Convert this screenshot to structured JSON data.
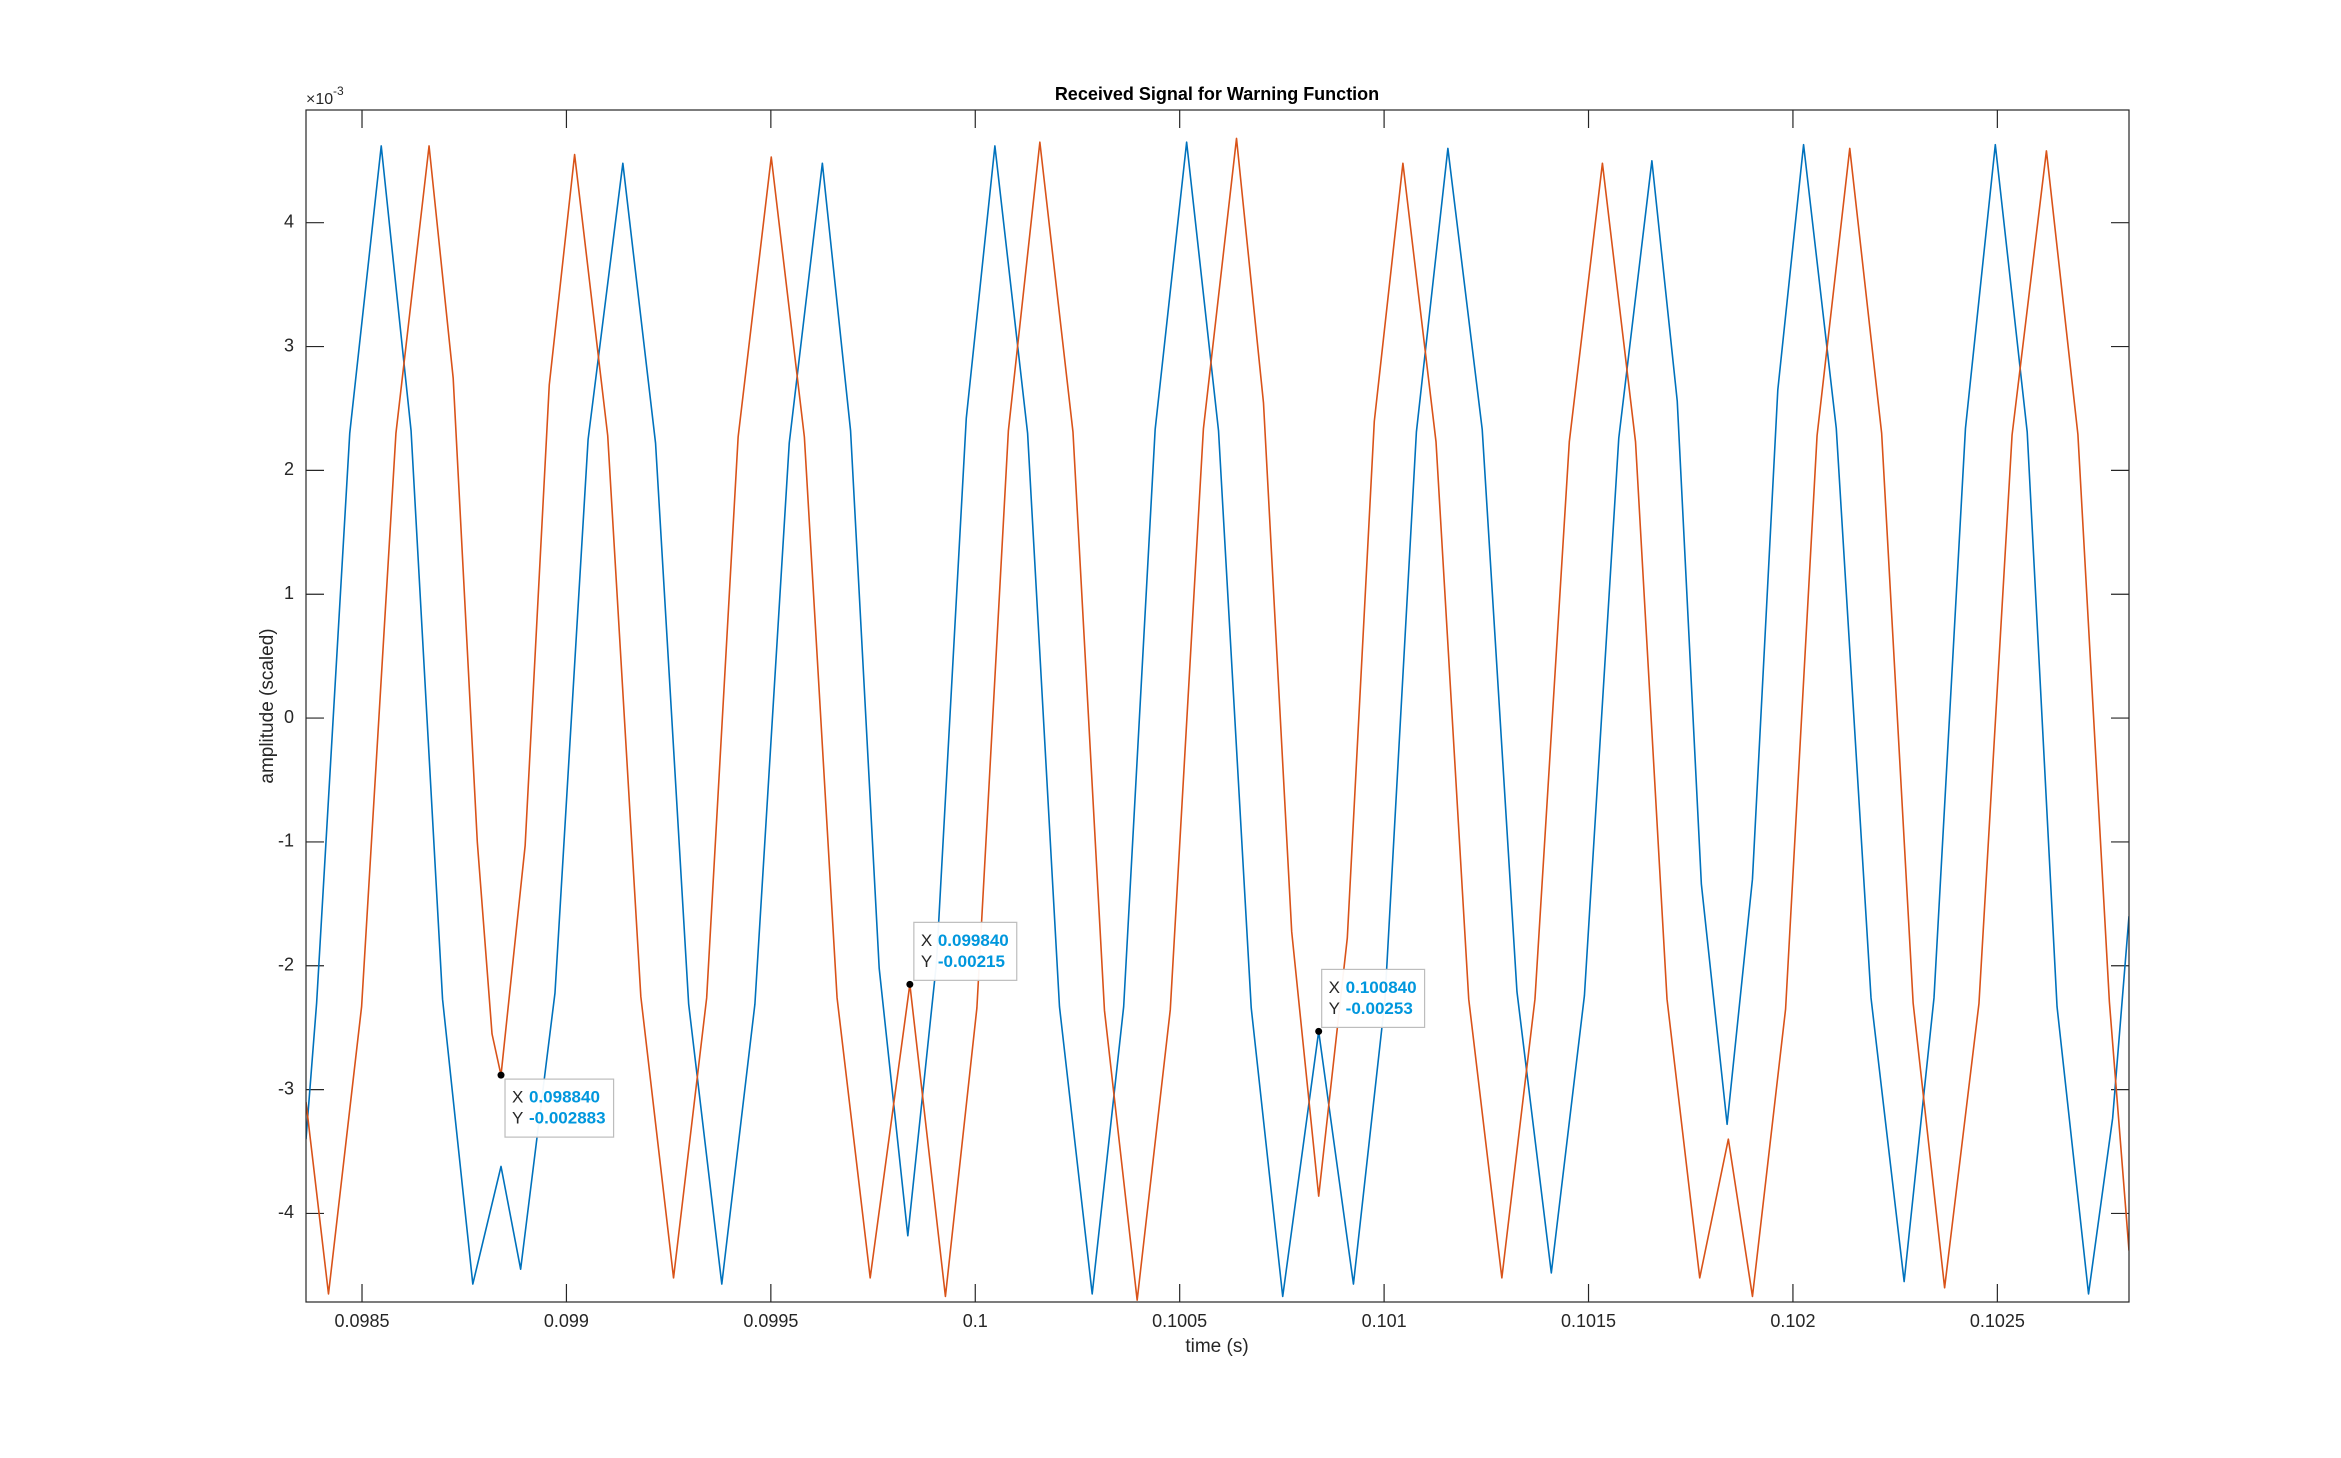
{
  "chart_data": {
    "type": "line",
    "title": "Received Signal for Warning Function",
    "xlabel": "time (s)",
    "ylabel": "amplitude (scaled)",
    "y_exponent": {
      "base": "×10",
      "power": "-3"
    },
    "xlim": [
      0.098363,
      0.102822
    ],
    "ylim": [
      -0.004715,
      0.00491
    ],
    "xticks": [
      0.0985,
      0.099,
      0.0995,
      0.1,
      0.1005,
      0.101,
      0.1015,
      0.102,
      0.1025
    ],
    "yticks": [
      {
        "value": -0.004,
        "label": "-4"
      },
      {
        "value": -0.003,
        "label": "-3"
      },
      {
        "value": -0.002,
        "label": "-2"
      },
      {
        "value": -0.001,
        "label": "-1"
      },
      0,
      {
        "value": 0.001,
        "label": "1"
      },
      {
        "value": 0.002,
        "label": "2"
      },
      {
        "value": 0.003,
        "label": "3"
      },
      {
        "value": 0.004,
        "label": "4"
      }
    ],
    "grid": false,
    "series": [
      {
        "color": "#0072BD",
        "x": [
          0.098363,
          0.098389,
          0.09847,
          0.098547,
          0.09862,
          0.098697,
          0.098771,
          0.09884,
          0.098888,
          0.098972,
          0.099053,
          0.099138,
          0.099218,
          0.099299,
          0.09938,
          0.099461,
          0.099545,
          0.099626,
          0.099695,
          0.099765,
          0.099835,
          0.099905,
          0.099978,
          0.100048,
          0.100128,
          0.100206,
          0.100286,
          0.100363,
          0.10044,
          0.100517,
          0.100595,
          0.100675,
          0.100752,
          0.10084,
          0.100925,
          0.101002,
          0.101079,
          0.101156,
          0.10124,
          0.101325,
          0.101409,
          0.10149,
          0.101574,
          0.101655,
          0.101717,
          0.101776,
          0.101839,
          0.101901,
          0.101963,
          0.102026,
          0.102106,
          0.102191,
          0.102272,
          0.102345,
          0.102422,
          0.102495,
          0.102573,
          0.102646,
          0.102723,
          0.102782,
          0.102822
        ],
        "values": [
          -0.0034,
          -0.0023,
          0.0023,
          0.00462,
          0.00232,
          -0.00227,
          -0.00457,
          -0.00362,
          -0.00445,
          -0.00222,
          0.00225,
          0.00448,
          0.00222,
          -0.00231,
          -0.00457,
          -0.00231,
          0.00222,
          0.00448,
          0.00232,
          -0.00202,
          -0.00418,
          -0.00198,
          0.00242,
          0.00462,
          0.0023,
          -0.00233,
          -0.00465,
          -0.00233,
          0.00233,
          0.00465,
          0.00232,
          -0.00234,
          -0.00467,
          -0.00253,
          -0.00457,
          -0.00228,
          0.00231,
          0.0046,
          0.00233,
          -0.00221,
          -0.00448,
          -0.00224,
          0.00226,
          0.0045,
          0.00256,
          -0.00134,
          -0.00328,
          -0.0013,
          0.00265,
          0.00463,
          0.00234,
          -0.00226,
          -0.00455,
          -0.00226,
          0.00234,
          0.00463,
          0.00231,
          -0.00233,
          -0.00465,
          -0.00323,
          -0.0016
        ]
      },
      {
        "color": "#D95319",
        "x": [
          0.098363,
          0.098418,
          0.098499,
          0.098583,
          0.098664,
          0.098723,
          0.098782,
          0.098818,
          0.09884,
          0.098899,
          0.098958,
          0.09902,
          0.099101,
          0.099182,
          0.099262,
          0.099343,
          0.09942,
          0.099501,
          0.099582,
          0.099662,
          0.099743,
          0.09984,
          0.099927,
          0.100004,
          0.100081,
          0.100158,
          0.100239,
          0.100316,
          0.100396,
          0.100477,
          0.100558,
          0.100639,
          0.100705,
          0.100774,
          0.10084,
          0.10091,
          0.100976,
          0.101046,
          0.101127,
          0.101207,
          0.101288,
          0.101369,
          0.101453,
          0.101534,
          0.101615,
          0.101692,
          0.101772,
          0.101842,
          0.101901,
          0.101982,
          0.102059,
          0.102139,
          0.102217,
          0.102294,
          0.102371,
          0.102455,
          0.102536,
          0.10262,
          0.102697,
          0.102774,
          0.102822
        ],
        "values": [
          -0.0031,
          -0.00465,
          -0.00233,
          0.0023,
          0.00462,
          0.002745,
          -0.001,
          -0.00255,
          -0.002883,
          -0.00103,
          0.00269,
          0.00455,
          0.00228,
          -0.00225,
          -0.00452,
          -0.00226,
          0.00227,
          0.00453,
          0.00227,
          -0.00226,
          -0.00452,
          -0.00215,
          -0.00467,
          -0.00234,
          0.00232,
          0.00465,
          0.00231,
          -0.00236,
          -0.0047,
          -0.002355,
          0.002335,
          0.00468,
          0.002545,
          -0.001725,
          -0.00386,
          -0.001775,
          0.002395,
          0.00448,
          0.00223,
          -0.00227,
          -0.00452,
          -0.00227,
          0.00223,
          0.00448,
          0.00223,
          -0.00227,
          -0.00452,
          -0.0034,
          -0.00467,
          -0.00235,
          0.00228,
          0.0046,
          0.0023,
          -0.0023,
          -0.0046,
          -0.002305,
          0.002285,
          0.00458,
          0.00229,
          -0.00229,
          -0.0043
        ]
      }
    ],
    "datatip_x_name": "X",
    "datatip_y_name": "Y",
    "datatips": [
      {
        "x": 0.09884,
        "y": -0.002883,
        "x_label": "0.098840",
        "y_label": "-0.002883"
      },
      {
        "x": 0.09984,
        "y": -0.00215,
        "x_label": "0.099840",
        "y_label": "-0.00215"
      },
      {
        "x": 0.10084,
        "y": -0.00253,
        "x_label": "0.100840",
        "y_label": "-0.00253"
      }
    ]
  }
}
